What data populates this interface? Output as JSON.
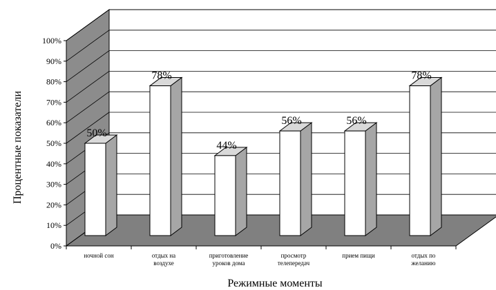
{
  "chart_data": {
    "type": "bar",
    "xlabel": "Режимные моменты",
    "ylabel": "Процентные показатели",
    "ylim": [
      0,
      100
    ],
    "grid": true,
    "yticks": [
      "0%",
      "10%",
      "20%",
      "30%",
      "40%",
      "50%",
      "60%",
      "70%",
      "80%",
      "90%",
      "100%"
    ],
    "categories": [
      [
        "ночной сон"
      ],
      [
        "отдых на",
        "воздухе"
      ],
      [
        "приготовление",
        "уроков дома"
      ],
      [
        "просмотр",
        "телепередач"
      ],
      [
        "прием пищи"
      ],
      [
        "отдых по",
        "желанию"
      ]
    ],
    "values": [
      50,
      78,
      44,
      56,
      56,
      78
    ],
    "data_labels": [
      "50%",
      "78%",
      "44%",
      "56%",
      "56%",
      "78%"
    ],
    "colors": {
      "bar_front": "#ffffff",
      "bar_side": "#a6a6a6",
      "bar_top": "#d9d9d9",
      "back_wall": "#ffffff",
      "side_wall": "#8c8c8c",
      "floor": "#808080",
      "outline": "#000000"
    }
  }
}
